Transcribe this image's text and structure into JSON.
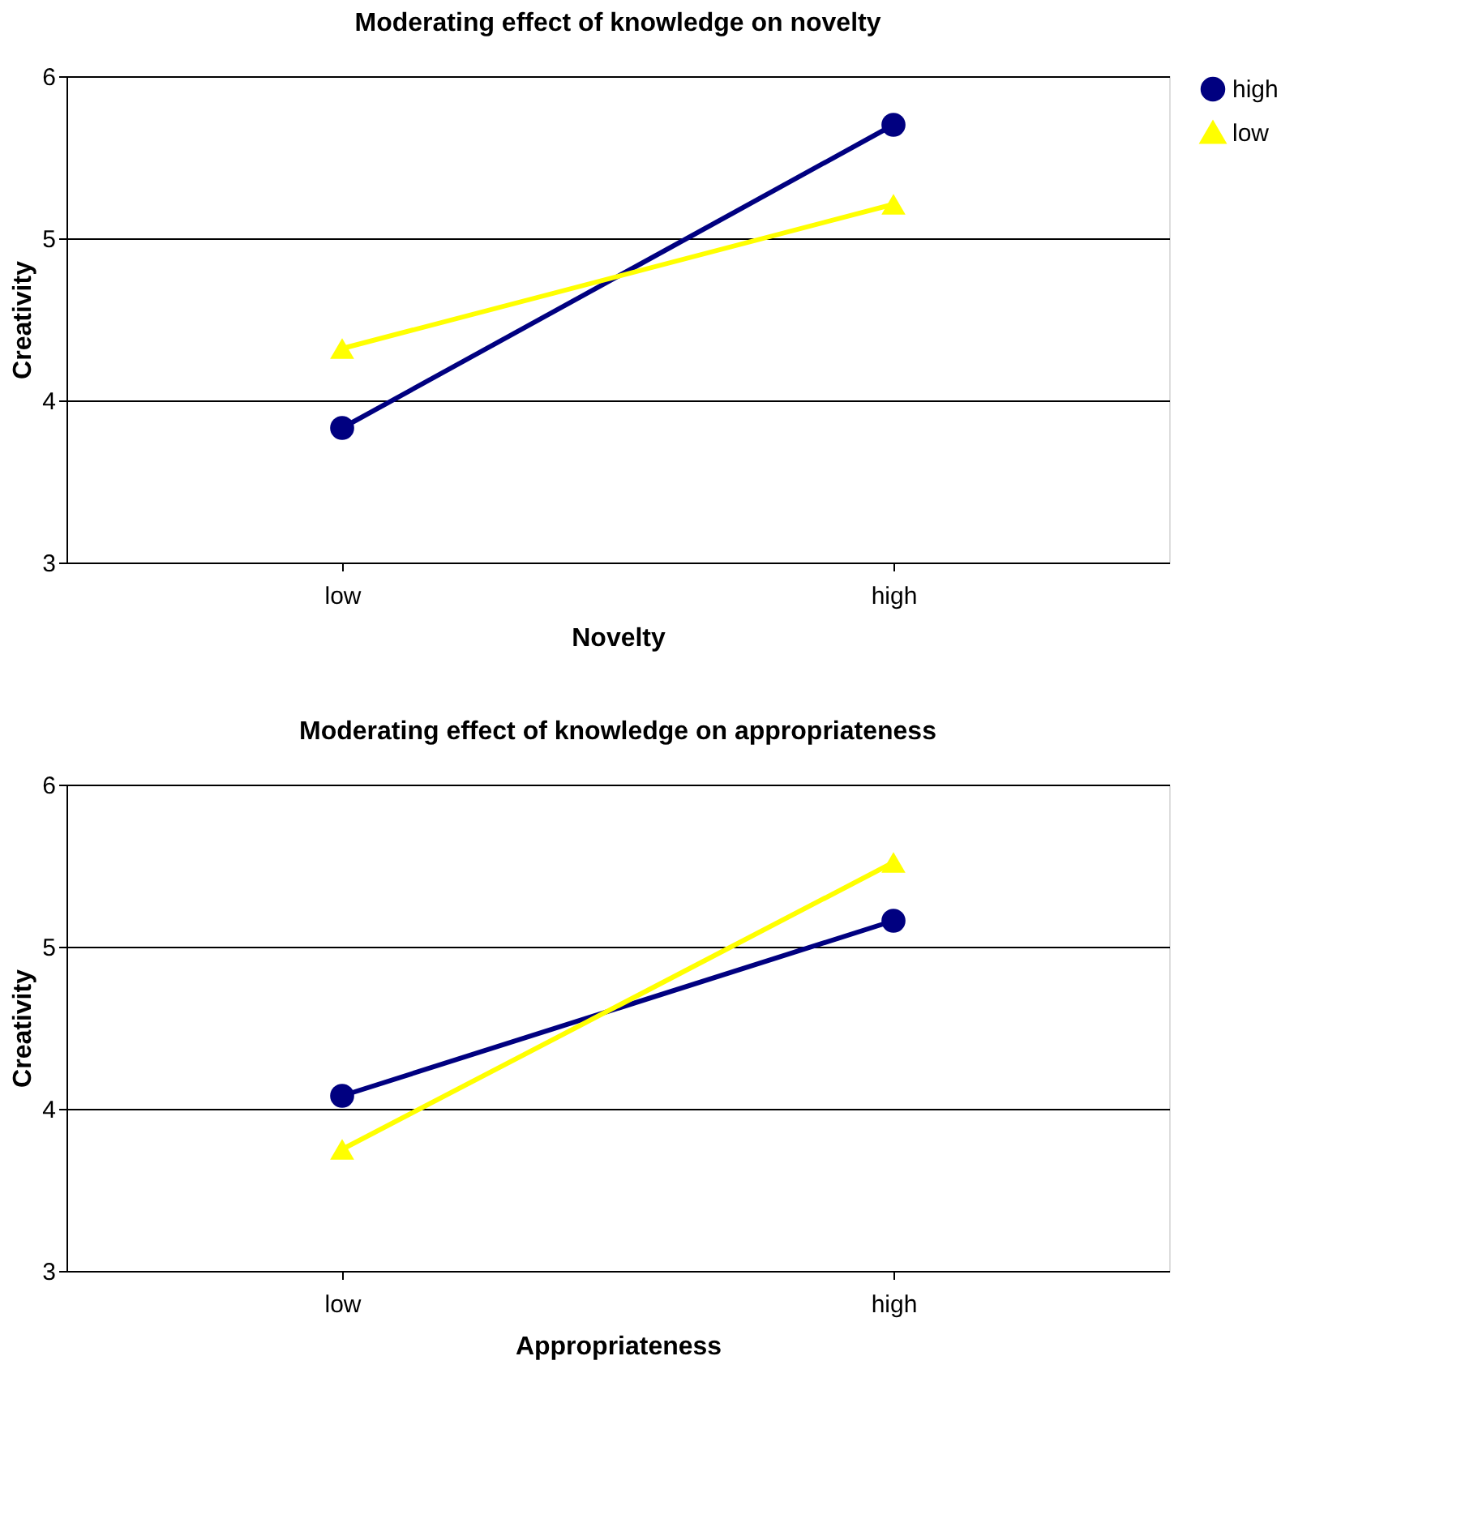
{
  "chart_data": [
    {
      "type": "line",
      "title": "Moderating effect of knowledge on novelty",
      "xlabel": "Novelty",
      "ylabel": "Creativity",
      "categories": [
        "low",
        "high"
      ],
      "ylim": [
        3,
        6
      ],
      "yticks": [
        3,
        4,
        5,
        6
      ],
      "grid": "y",
      "legend": "right",
      "series": [
        {
          "name": "high",
          "color": "#000080",
          "marker": "circle",
          "values": [
            3.83,
            5.7
          ]
        },
        {
          "name": "low",
          "color": "#ffff00",
          "marker": "triangle",
          "values": [
            4.32,
            5.21
          ]
        }
      ]
    },
    {
      "type": "line",
      "title": "Moderating effect of knowledge on appropriateness",
      "xlabel": "Appropriateness",
      "ylabel": "Creativity",
      "categories": [
        "low",
        "high"
      ],
      "ylim": [
        3,
        6
      ],
      "yticks": [
        3,
        4,
        5,
        6
      ],
      "grid": "y",
      "legend": "right",
      "series": [
        {
          "name": "high",
          "color": "#000080",
          "marker": "circle",
          "values": [
            4.08,
            5.16
          ]
        },
        {
          "name": "low",
          "color": "#ffff00",
          "marker": "triangle",
          "values": [
            3.75,
            5.52
          ]
        }
      ]
    }
  ]
}
